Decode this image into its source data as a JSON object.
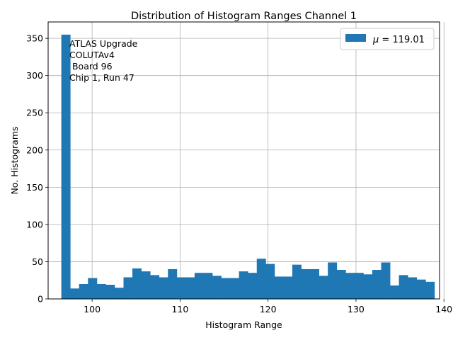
{
  "chart_data": {
    "type": "bar",
    "title": "Distribution of Histogram Ranges Channel 1",
    "xlabel": "Histogram Range",
    "ylabel": "No. Histograms",
    "xlim": [
      95.0,
      139.5
    ],
    "ylim": [
      0,
      372
    ],
    "xticks": [
      100,
      110,
      120,
      130,
      140
    ],
    "yticks": [
      0,
      50,
      100,
      150,
      200,
      250,
      300,
      350
    ],
    "grid": true,
    "bar_color": "#1f77b4",
    "legend": {
      "position": "top-right",
      "label": "μ = 119.01",
      "math_symbol": "μ",
      "label_rest": " = 119.01"
    },
    "annotation_lines": [
      "ATLAS Upgrade",
      "COLUTAv4",
      " Board 96",
      "Chip 1, Run 47"
    ],
    "bin_edges": [
      96.5,
      97.51,
      98.52,
      99.53,
      100.54,
      101.55,
      102.56,
      103.57,
      104.58,
      105.59,
      106.6,
      107.61,
      108.62,
      109.63,
      110.64,
      111.65,
      112.66,
      113.67,
      114.68,
      115.69,
      116.7,
      117.71,
      118.72,
      119.73,
      120.74,
      121.75,
      122.76,
      123.77,
      124.78,
      125.79,
      126.8,
      127.81,
      128.82,
      129.83,
      130.84,
      131.85,
      132.86,
      133.87,
      134.88,
      135.89,
      136.9,
      137.91,
      138.92
    ],
    "counts": [
      355,
      14,
      20,
      28,
      20,
      19,
      15,
      29,
      41,
      37,
      32,
      29,
      40,
      29,
      29,
      35,
      35,
      31,
      28,
      28,
      37,
      35,
      54,
      47,
      30,
      30,
      46,
      40,
      40,
      31,
      49,
      39,
      35,
      35,
      33,
      39,
      49,
      18,
      32,
      29,
      26,
      23
    ]
  }
}
